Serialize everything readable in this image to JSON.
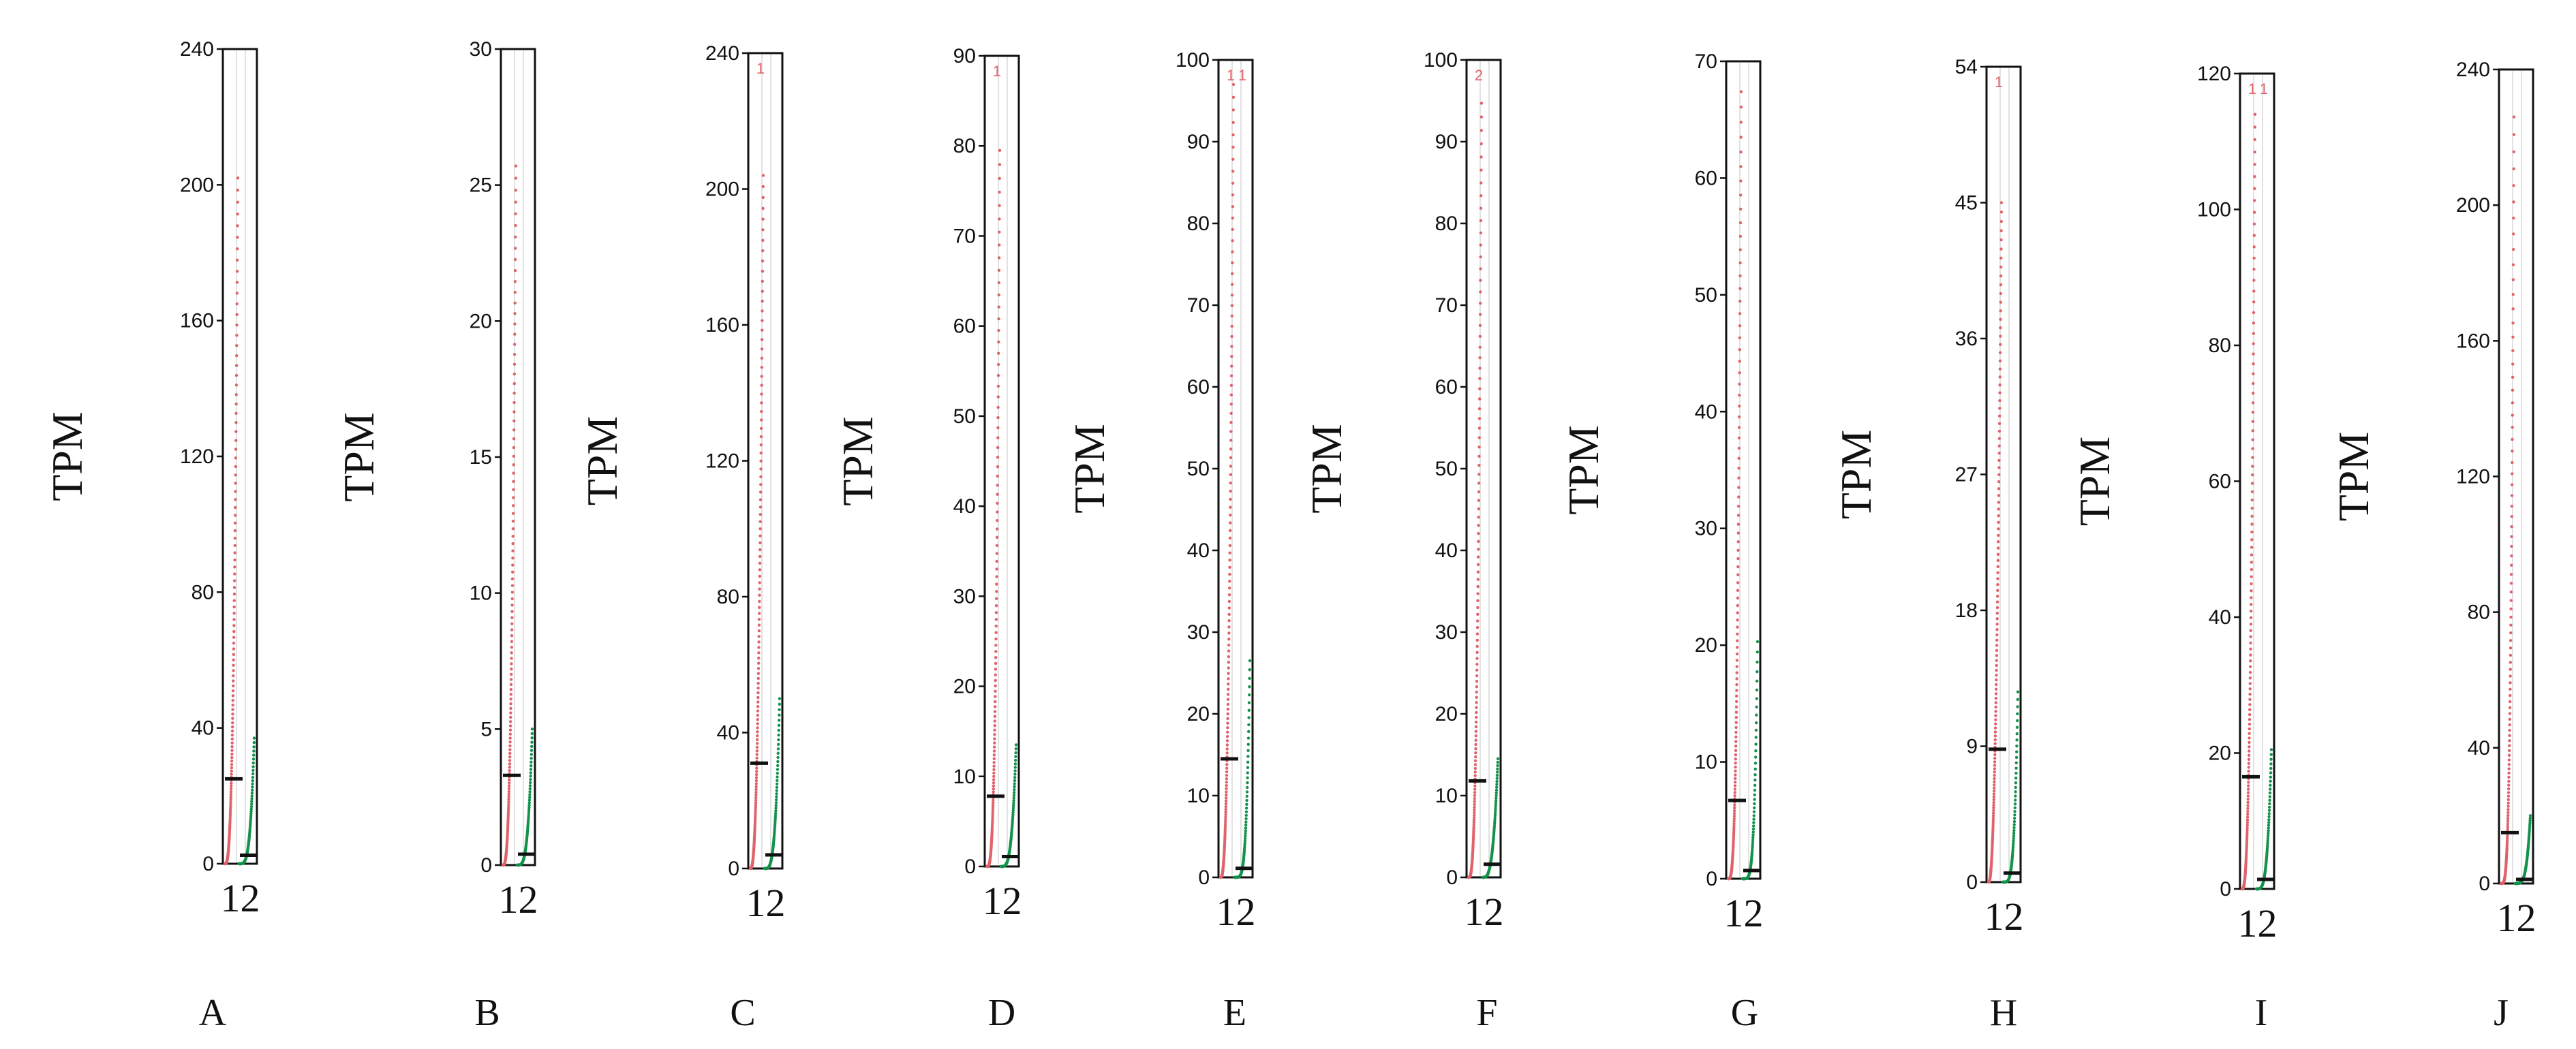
{
  "colors": {
    "group1": "#e0626a",
    "group2": "#12924a",
    "axis": "#111111",
    "grid": "#d9d9d9",
    "median": "#111111"
  },
  "chart_data": [
    {
      "panel": "A",
      "type": "scatter",
      "ylabel": "TPM",
      "categories": [
        "1",
        "2"
      ],
      "yticks": [
        0,
        40,
        80,
        120,
        160,
        200,
        240
      ],
      "ylim": [
        0,
        240
      ],
      "medians": [
        25,
        2.5
      ],
      "max_values": [
        202,
        37
      ],
      "top_notes": []
    },
    {
      "panel": "B",
      "type": "scatter",
      "ylabel": "TPM",
      "categories": [
        "1",
        "2"
      ],
      "yticks": [
        0,
        5,
        10,
        15,
        20,
        25,
        30
      ],
      "ylim": [
        0,
        30
      ],
      "medians": [
        3.3,
        0.4
      ],
      "max_values": [
        25.7,
        5
      ],
      "top_notes": []
    },
    {
      "panel": "C",
      "type": "scatter",
      "ylabel": "TPM",
      "categories": [
        "1",
        "2"
      ],
      "yticks": [
        0,
        40,
        80,
        120,
        160,
        200,
        240
      ],
      "ylim": [
        0,
        240
      ],
      "medians": [
        31,
        4
      ],
      "max_values": [
        204,
        50
      ],
      "top_notes": [
        "1",
        ""
      ]
    },
    {
      "panel": "D",
      "type": "scatter",
      "ylabel": "TPM",
      "categories": [
        "1",
        "2"
      ],
      "yticks": [
        0,
        10,
        20,
        30,
        40,
        50,
        60,
        70,
        80,
        90
      ],
      "ylim": [
        0,
        90
      ],
      "medians": [
        7.8,
        1.1
      ],
      "max_values": [
        79.5,
        13.5
      ],
      "top_notes": [
        "1",
        ""
      ]
    },
    {
      "panel": "E",
      "type": "scatter",
      "ylabel": "TPM",
      "categories": [
        "1",
        "2"
      ],
      "yticks": [
        0,
        10,
        20,
        30,
        40,
        50,
        60,
        70,
        80,
        90,
        100
      ],
      "ylim": [
        0,
        100
      ],
      "medians": [
        14.5,
        1.1
      ],
      "max_values": [
        97,
        26.5
      ],
      "top_notes": [
        "1",
        "1"
      ]
    },
    {
      "panel": "F",
      "type": "scatter",
      "ylabel": "TPM",
      "categories": [
        "1",
        "2"
      ],
      "yticks": [
        0,
        10,
        20,
        30,
        40,
        50,
        60,
        70,
        80,
        90,
        100
      ],
      "ylim": [
        0,
        100
      ],
      "medians": [
        11.8,
        1.6
      ],
      "max_values": [
        94.7,
        14.5
      ],
      "top_notes": [
        "2",
        ""
      ]
    },
    {
      "panel": "G",
      "type": "scatter",
      "ylabel": "TPM",
      "categories": [
        "1",
        "2"
      ],
      "yticks": [
        0,
        10,
        20,
        30,
        40,
        50,
        60,
        70
      ],
      "ylim": [
        0,
        70
      ],
      "medians": [
        6.7,
        0.7
      ],
      "max_values": [
        67.4,
        20.3
      ],
      "top_notes": []
    },
    {
      "panel": "H",
      "type": "scatter",
      "ylabel": "TPM",
      "categories": [
        "1",
        "2"
      ],
      "yticks": [
        0,
        9,
        18,
        27,
        36,
        45,
        54
      ],
      "ylim": [
        0,
        54
      ],
      "medians": [
        8.8,
        0.6
      ],
      "max_values": [
        45,
        12.6
      ],
      "top_notes": [
        "1",
        ""
      ]
    },
    {
      "panel": "I",
      "type": "scatter",
      "ylabel": "TPM",
      "categories": [
        "1",
        "2"
      ],
      "yticks": [
        0,
        20,
        40,
        60,
        80,
        100,
        120
      ],
      "ylim": [
        0,
        120
      ],
      "medians": [
        16.5,
        1.4
      ],
      "max_values": [
        114,
        20.5
      ],
      "top_notes": [
        "1",
        "1"
      ]
    },
    {
      "panel": "J",
      "type": "scatter",
      "ylabel": "TPM",
      "categories": [
        "1",
        "2"
      ],
      "yticks": [
        0,
        40,
        80,
        120,
        160,
        200,
        240
      ],
      "ylim": [
        0,
        240
      ],
      "medians": [
        15,
        1.2
      ],
      "max_values": [
        226,
        20
      ],
      "top_notes": []
    }
  ]
}
